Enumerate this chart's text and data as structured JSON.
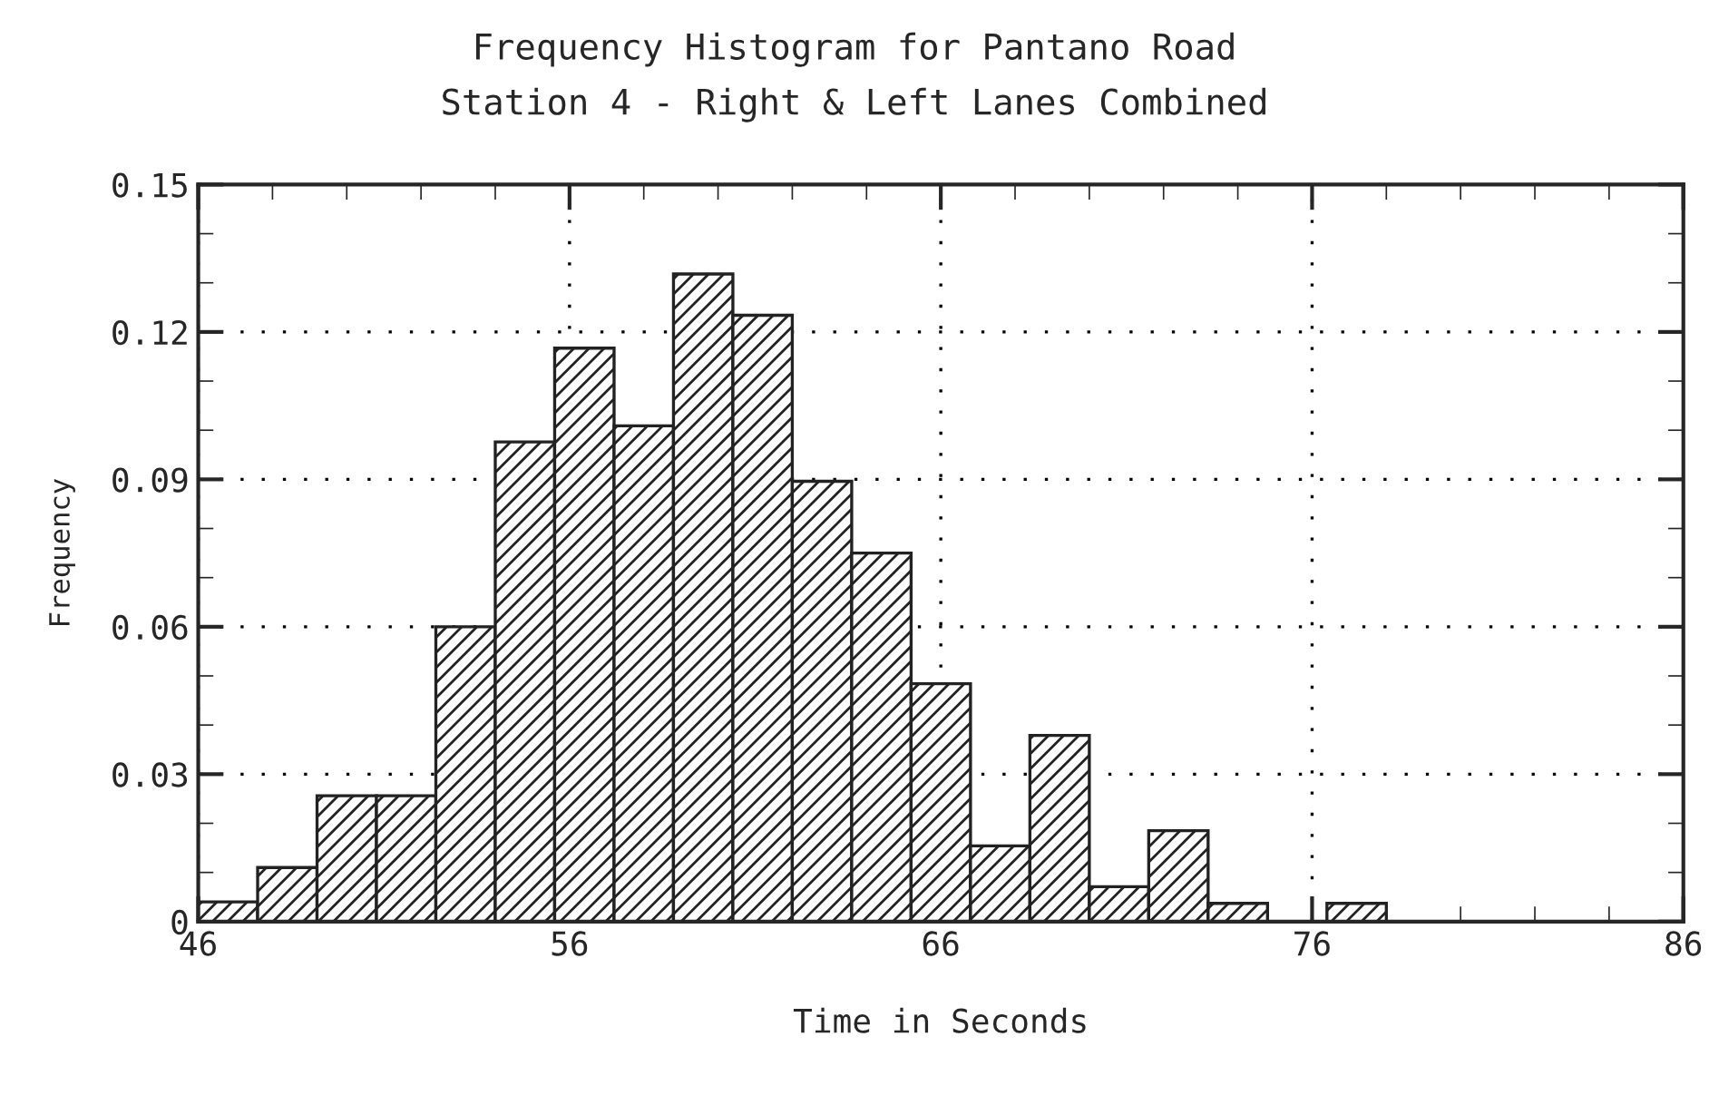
{
  "chart_data": {
    "type": "histogram",
    "title": "Frequency Histogram for Pantano Road",
    "subtitle": "Station 4 - Right & Left Lanes Combined",
    "xlabel": "Time in Seconds",
    "ylabel": "Frequency",
    "bins": [
      46,
      47.6,
      49.2,
      50.8,
      52.4,
      54,
      55.6,
      57.2,
      58.8,
      60.4,
      62,
      63.6,
      65.2,
      66.8,
      68.4,
      70,
      71.6,
      73.2,
      74.8,
      76.4,
      78
    ],
    "values": [
      0.004,
      0.011,
      0.0256,
      0.0256,
      0.06,
      0.0976,
      0.1167,
      0.1009,
      0.1318,
      0.1234,
      0.0896,
      0.075,
      0.0484,
      0.0154,
      0.0379,
      0.0071,
      0.0185,
      0.0037,
      0,
      0.0037
    ],
    "color": "#222222",
    "xlim": [
      46,
      86
    ],
    "xticks": [
      46,
      56,
      66,
      76,
      86
    ],
    "ylim": [
      0,
      0.15
    ],
    "yticks": [
      0,
      0.03,
      0.06,
      0.09,
      0.12,
      0.15
    ],
    "grid": true
  }
}
